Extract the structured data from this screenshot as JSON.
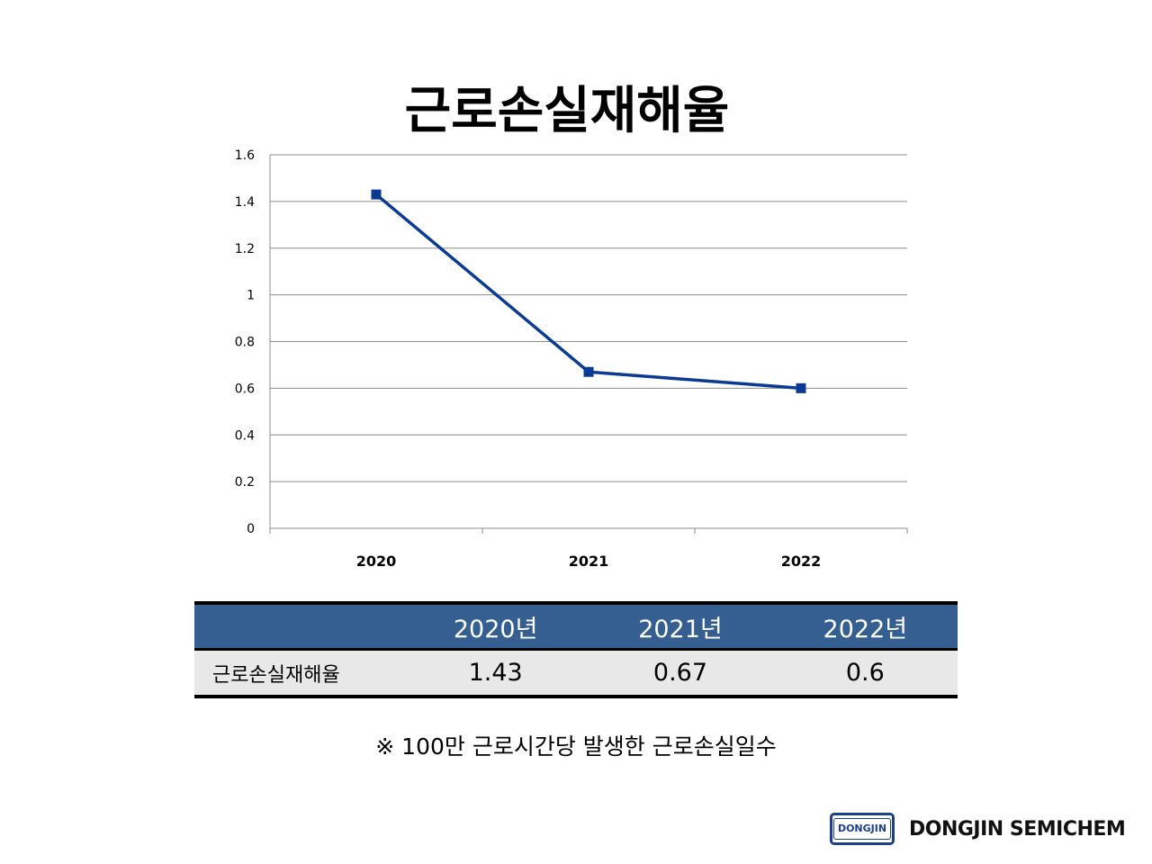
{
  "slide": {
    "title": "근로손실재해율",
    "footnote": "※ 100만 근로시간당 발생한 근로손실일수"
  },
  "chart_data": {
    "type": "line",
    "categories": [
      "2020",
      "2021",
      "2022"
    ],
    "values": [
      1.43,
      0.67,
      0.6
    ],
    "ylim": [
      0,
      1.6
    ],
    "yticks": [
      "0",
      "0.2",
      "0.4",
      "0.6",
      "0.8",
      "1",
      "1.2",
      "1.4",
      "1.6"
    ],
    "grid": true,
    "legend": "none",
    "line_color": "#0b3a94",
    "marker": "square"
  },
  "table": {
    "headers": [
      "",
      "2020년",
      "2021년",
      "2022년"
    ],
    "row_label": "근로손실재해율",
    "values": [
      "1.43",
      "0.67",
      "0.6"
    ],
    "header_color": "#365f91"
  },
  "brand": {
    "badge_text": "DONGJIN",
    "name": "DONGJIN SEMICHEM",
    "color": "#1c3f8a"
  }
}
